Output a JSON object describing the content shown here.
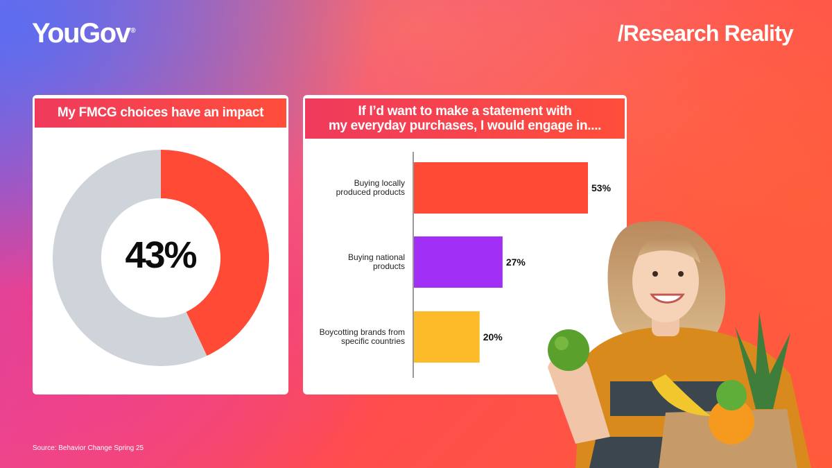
{
  "header": {
    "brand": "YouGov",
    "brand_mark": "®",
    "tagline": "/Research Reality"
  },
  "source": "Source: Behavior Change Spring 25",
  "chart_data": [
    {
      "type": "pie",
      "title": "My FMCG choices have an impact",
      "center_label": "43%",
      "slices": [
        {
          "label": "",
          "value": 43,
          "color": "#ff4a35"
        },
        {
          "label": "",
          "value": 57,
          "color": "#cfd3da"
        }
      ]
    },
    {
      "type": "bar",
      "orientation": "horizontal",
      "title_lines": [
        "If I’d want to make a statement with",
        "my everyday purchases, I would engage in...."
      ],
      "categories": [
        [
          "Buying locally",
          "produced products"
        ],
        [
          "Buying national",
          "products"
        ],
        [
          "Boycotting brands from",
          "specific countries"
        ]
      ],
      "values": [
        53,
        27,
        20
      ],
      "value_labels": [
        "53%",
        "27%",
        "20%"
      ],
      "colors": [
        "#ff4a35",
        "#a12ff5",
        "#fdbb2a"
      ],
      "xlim": [
        0,
        53
      ]
    }
  ]
}
